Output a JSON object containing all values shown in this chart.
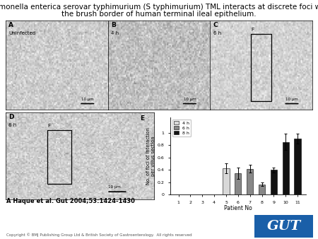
{
  "title_line1": "Salmonella enterica serovar typhimurium (S typhimurium) TML interacts at discrete foci with",
  "title_line2": "the brush border of human terminal ileal epithelium.",
  "title_fontsize": 7.5,
  "citation": "A Haque et al. Gut 2004;53:1424-1430",
  "copyright": "Copyright © BMJ Publishing Group Ltd & British Society of Gastroenterology.  All rights reserved",
  "gut_logo_color": "#1a5fa8",
  "gut_logo_text": "GUT",
  "bar_groups": {
    "data": [
      {
        "hour": "4 h",
        "color": "#d8d8d8",
        "patients": [
          5
        ],
        "values": [
          0.43
        ],
        "errors": [
          0.08
        ]
      },
      {
        "hour": "6 h",
        "color": "#888888",
        "patients": [
          6,
          7,
          8
        ],
        "values": [
          0.35,
          0.42,
          0.17
        ],
        "errors": [
          0.09,
          0.06,
          0.03
        ]
      },
      {
        "hour": "8 h",
        "color": "#111111",
        "patients": [
          9,
          10,
          11
        ],
        "values": [
          0.4,
          0.85,
          0.9
        ],
        "errors": [
          0.04,
          0.13,
          0.08
        ]
      }
    ]
  },
  "bar_xlabel": "Patient No",
  "bar_ylabel": "No. of foci of interaction\nper villus section",
  "bar_ylim": [
    0,
    1.25
  ],
  "bar_yticks": [
    0,
    0.2,
    0.4,
    0.6,
    0.8,
    1
  ],
  "legend_labels": [
    "4 h",
    "6 h",
    "8 h"
  ],
  "legend_colors": [
    "#d8d8d8",
    "#888888",
    "#111111"
  ],
  "background_color": "#ffffff",
  "panel_bg": "#c0b8b0"
}
